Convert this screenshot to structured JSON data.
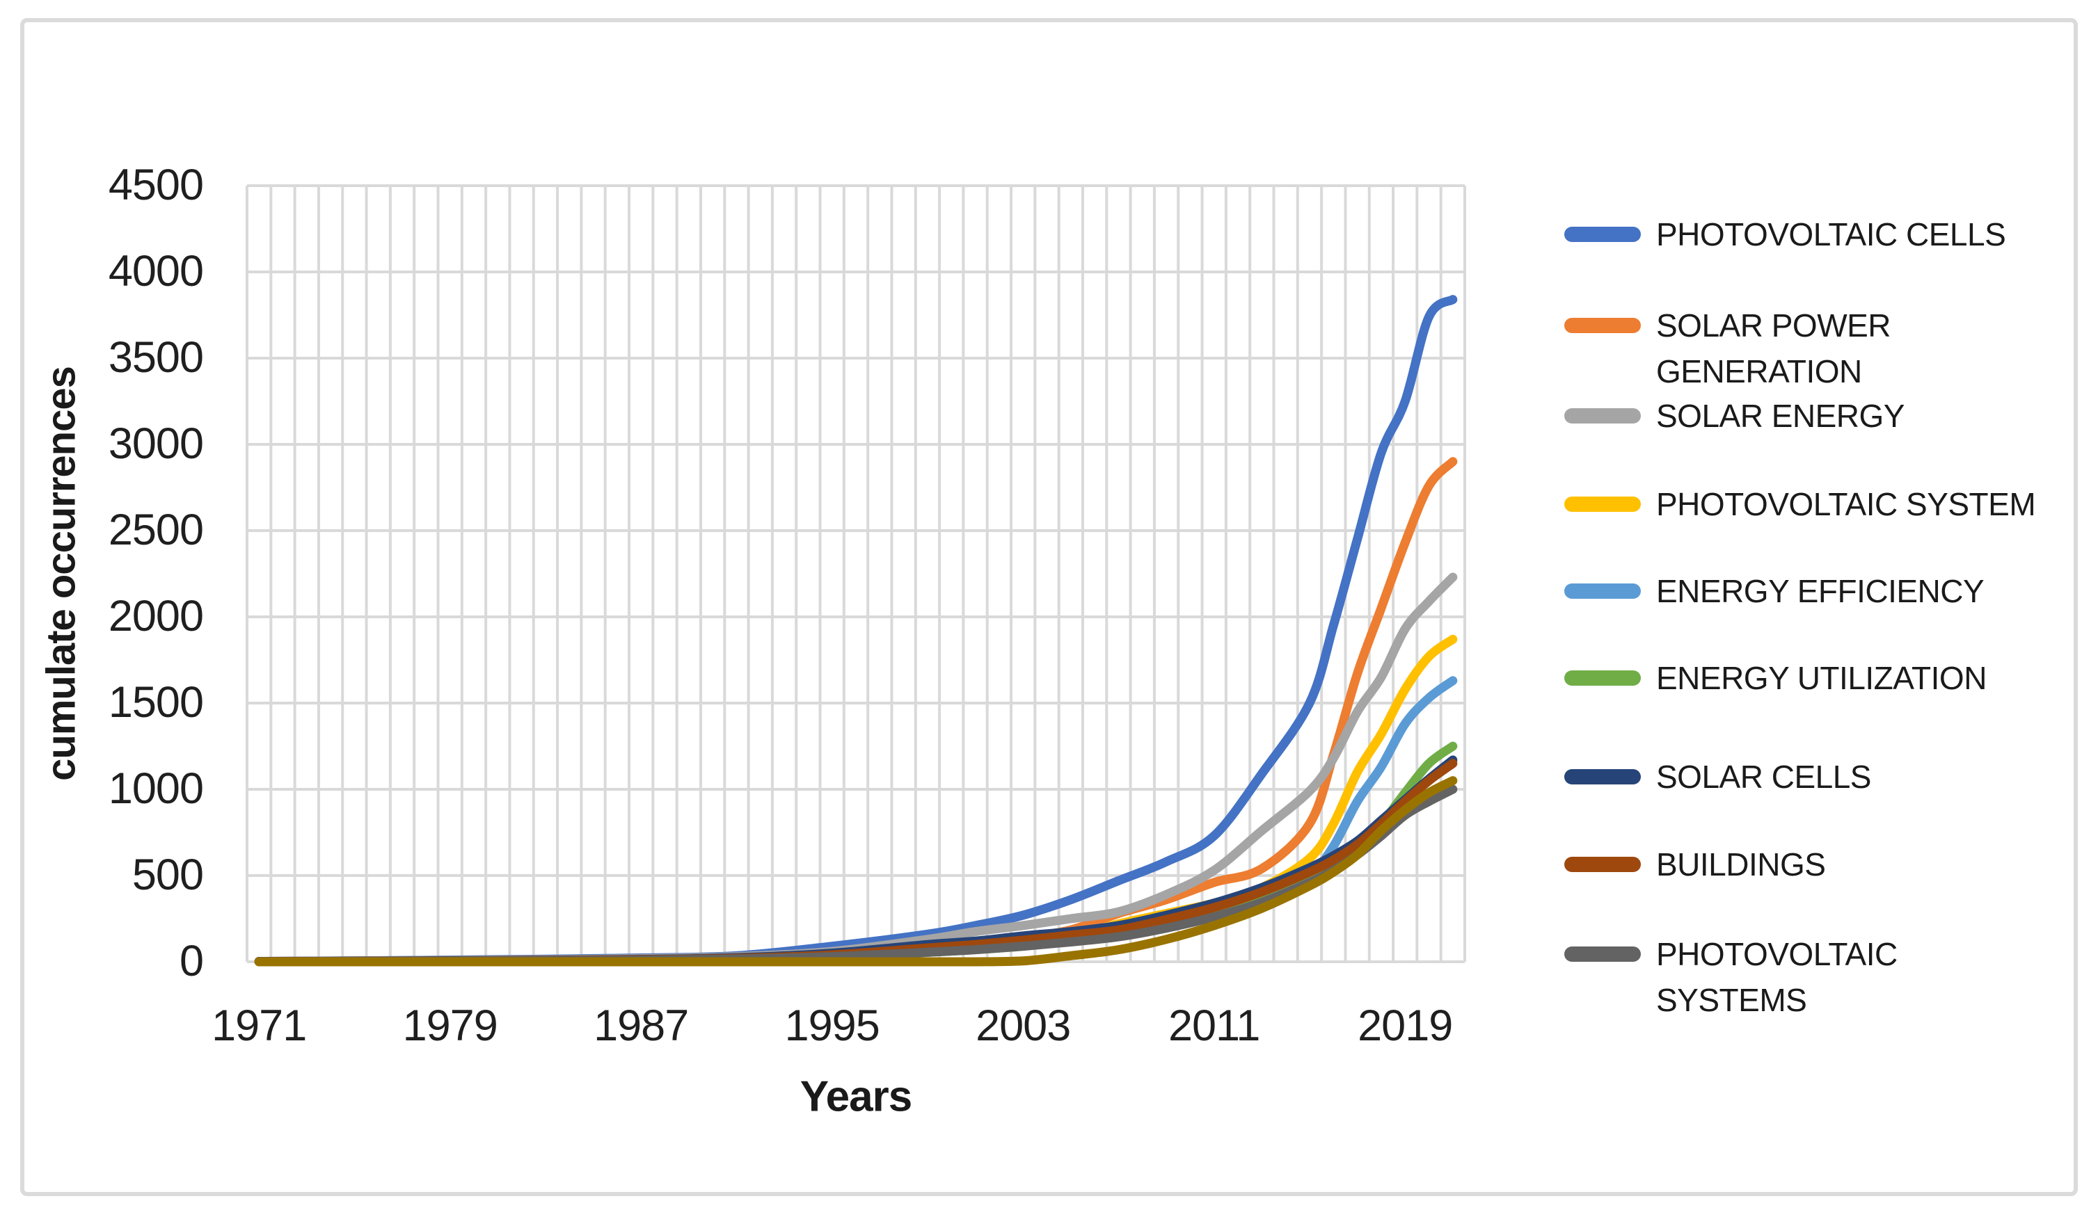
{
  "figure": {
    "background": "#ffffff",
    "border_color": "#dbdbdb"
  },
  "axes": {
    "y_title": "cumulate occurrences",
    "x_title": "Years",
    "y_ticks": [
      "0",
      "500",
      "1000",
      "1500",
      "2000",
      "2500",
      "3000",
      "3500",
      "4000",
      "4500"
    ],
    "x_ticks": [
      "1971",
      "1979",
      "1987",
      "1995",
      "2003",
      "2011",
      "2019"
    ],
    "gridline_color": "#d9d9d9",
    "tick_color": "#1f1f1f"
  },
  "legend": {
    "position": "right",
    "items": [
      {
        "label": "PHOTOVOLTAIC CELLS",
        "color": "#4472c4"
      },
      {
        "label": "SOLAR POWER\nGENERATION",
        "color": "#ed7d31"
      },
      {
        "label": "SOLAR ENERGY",
        "color": "#a5a5a5"
      },
      {
        "label": "PHOTOVOLTAIC SYSTEM",
        "color": "#ffc000"
      },
      {
        "label": "ENERGY EFFICIENCY",
        "color": "#5b9bd5"
      },
      {
        "label": "ENERGY UTILIZATION",
        "color": "#70ad47"
      },
      {
        "label": "SOLAR CELLS",
        "color": "#264478"
      },
      {
        "label": "BUILDINGS",
        "color": "#9e480e"
      },
      {
        "label": "PHOTOVOLTAIC\nSYSTEMS",
        "color": "#636363"
      }
    ]
  },
  "chart_data": {
    "type": "line",
    "title": "",
    "xlabel": "Years",
    "ylabel": "cumulate occurrences",
    "ylim": [
      0,
      4500
    ],
    "xlim": [
      1971,
      2022
    ],
    "y_tick_step": 500,
    "x_tick_years": [
      1971,
      1979,
      1987,
      1995,
      2003,
      2011,
      2019
    ],
    "grid": true,
    "legend_position": "right",
    "years": [
      1971,
      1975,
      1979,
      1983,
      1987,
      1991,
      1995,
      1999,
      2001,
      2003,
      2005,
      2007,
      2009,
      2011,
      2013,
      2015,
      2016,
      2017,
      2018,
      2019,
      2020,
      2021
    ],
    "series": [
      {
        "name": "PHOTOVOLTAIC CELLS",
        "color": "#4472c4",
        "values": [
          2,
          5,
          10,
          15,
          22,
          35,
          90,
          160,
          210,
          270,
          360,
          470,
          580,
          730,
          1090,
          1500,
          1950,
          2450,
          2950,
          3250,
          3740,
          3840
        ]
      },
      {
        "name": "SOLAR POWER GENERATION",
        "color": "#ed7d31",
        "values": [
          2,
          4,
          7,
          10,
          15,
          25,
          45,
          90,
          110,
          140,
          185,
          280,
          360,
          460,
          540,
          800,
          1200,
          1670,
          2050,
          2430,
          2760,
          2900
        ]
      },
      {
        "name": "SOLAR ENERGY",
        "color": "#a5a5a5",
        "values": [
          2,
          5,
          8,
          12,
          18,
          30,
          60,
          130,
          175,
          210,
          250,
          290,
          390,
          530,
          760,
          990,
          1180,
          1450,
          1650,
          1930,
          2090,
          2230
        ]
      },
      {
        "name": "PHOTOVOLTAIC SYSTEM",
        "color": "#ffc000",
        "values": [
          1,
          3,
          5,
          8,
          12,
          20,
          40,
          75,
          95,
          120,
          150,
          220,
          280,
          340,
          430,
          600,
          800,
          1100,
          1320,
          1580,
          1770,
          1870
        ]
      },
      {
        "name": "ENERGY EFFICIENCY",
        "color": "#5b9bd5",
        "values": [
          1,
          2,
          4,
          6,
          10,
          18,
          35,
          65,
          80,
          100,
          130,
          160,
          200,
          260,
          340,
          500,
          670,
          930,
          1130,
          1380,
          1530,
          1630
        ]
      },
      {
        "name": "ENERGY UTILIZATION",
        "color": "#70ad47",
        "values": [
          1,
          2,
          3,
          5,
          8,
          14,
          28,
          55,
          70,
          90,
          120,
          150,
          200,
          270,
          360,
          480,
          560,
          660,
          800,
          980,
          1150,
          1250
        ]
      },
      {
        "name": "SOLAR CELLS",
        "color": "#264478",
        "values": [
          2,
          4,
          6,
          9,
          14,
          24,
          50,
          100,
          120,
          150,
          175,
          210,
          270,
          340,
          430,
          545,
          615,
          700,
          820,
          940,
          1060,
          1170
        ]
      },
      {
        "name": "BUILDINGS",
        "color": "#9e480e",
        "values": [
          1,
          3,
          5,
          8,
          12,
          20,
          40,
          80,
          100,
          125,
          155,
          185,
          245,
          315,
          405,
          520,
          590,
          680,
          800,
          930,
          1050,
          1150
        ]
      },
      {
        "name": "PHOTOVOLTAIC SYSTEMS",
        "color": "#636363",
        "values": [
          1,
          2,
          4,
          6,
          9,
          16,
          30,
          55,
          70,
          90,
          115,
          145,
          195,
          260,
          345,
          460,
          530,
          620,
          730,
          850,
          930,
          1000
        ]
      },
      {
        "name": "",
        "color": "#997300",
        "values": [
          0,
          0,
          0,
          0,
          0,
          0,
          0,
          0,
          0,
          5,
          35,
          70,
          130,
          210,
          310,
          440,
          520,
          620,
          760,
          880,
          980,
          1050
        ]
      }
    ]
  }
}
